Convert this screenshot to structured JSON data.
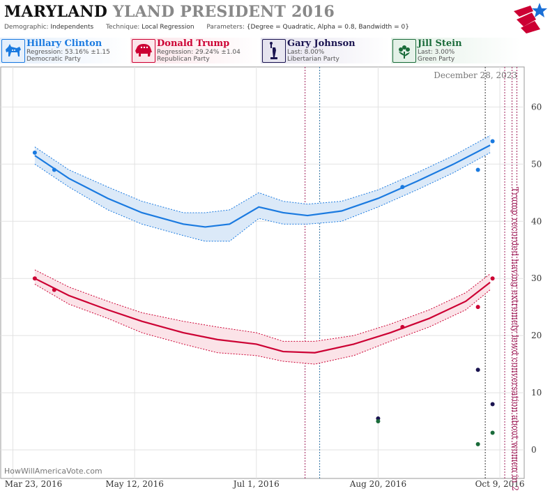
{
  "header": {
    "title_main": "MARYLAND",
    "title_second": "YLAND PRESIDENT 2016",
    "demographic_label": "Demographic:",
    "demographic_value": "Independents",
    "technique_label": "Technique:",
    "technique_value": "Local Regression",
    "parameters_label": "Parameters:",
    "parameters_value": "{Degree = Quadratic, Alpha = 0.8, Bandwidth = 0}"
  },
  "candidates": [
    {
      "name": "Hillary Clinton",
      "stat": "Regression: 53.16% ±1.15",
      "party": "Democratic Party",
      "color": "#1a7ae0",
      "icon": "donkey-icon"
    },
    {
      "name": "Donald Trump",
      "stat": "Regression: 29.24% ±1.04",
      "party": "Republican Party",
      "color": "#cc0033",
      "icon": "elephant-icon"
    },
    {
      "name": "Gary Johnson",
      "stat": "Last: 8.00%",
      "party": "Libertarian Party",
      "color": "#1a1450",
      "icon": "statue-of-liberty-icon"
    },
    {
      "name": "Jill Stein",
      "stat": "Last: 3.00%",
      "party": "Green Party",
      "color": "#1a6b3a",
      "icon": "flower-icon"
    }
  ],
  "chart_data": {
    "type": "line",
    "date_label": "December 28, 2023",
    "watermark": "HowWillAmericaVote.com",
    "annotation": "Trump recorded having extremely lewd conversation about women in 2005",
    "x_range": [
      "2016-03-18",
      "2016-10-19"
    ],
    "ylim": [
      -5,
      67
    ],
    "y_ticks": [
      0,
      10,
      20,
      30,
      40,
      50,
      60
    ],
    "x_ticks": [
      {
        "date": "2016-03-23",
        "label": "Mar 23, 2016"
      },
      {
        "date": "2016-05-12",
        "label": "May 12, 2016"
      },
      {
        "date": "2016-07-01",
        "label": "Jul 1, 2016"
      },
      {
        "date": "2016-08-20",
        "label": "Aug 20, 2016"
      },
      {
        "date": "2016-10-09",
        "label": "Oct 9, 2016"
      }
    ],
    "grid": true,
    "event_lines": [
      {
        "date": "2016-07-21",
        "color": "#a0205a"
      },
      {
        "date": "2016-07-27",
        "color": "#2b6fa0"
      },
      {
        "date": "2016-10-03",
        "color": "#333333"
      },
      {
        "date": "2016-10-11",
        "color": "#a0205a"
      },
      {
        "date": "2016-10-14",
        "color": "#a0205a"
      },
      {
        "date": "2016-10-16",
        "color": "#a0205a"
      }
    ],
    "series": [
      {
        "color": "#1a7ae0",
        "band_color": "#dbe9f8",
        "fit": [
          {
            "x": "2016-04-01",
            "y": 51.5,
            "lo": 50.0,
            "hi": 53.0
          },
          {
            "x": "2016-04-15",
            "y": 47.5,
            "lo": 46.0,
            "hi": 49.0
          },
          {
            "x": "2016-05-01",
            "y": 44.0,
            "lo": 42.0,
            "hi": 46.0
          },
          {
            "x": "2016-05-15",
            "y": 41.5,
            "lo": 39.5,
            "hi": 43.5
          },
          {
            "x": "2016-06-01",
            "y": 39.5,
            "lo": 37.5,
            "hi": 41.5
          },
          {
            "x": "2016-06-10",
            "y": 39.0,
            "lo": 36.5,
            "hi": 41.5
          },
          {
            "x": "2016-06-20",
            "y": 39.5,
            "lo": 36.5,
            "hi": 42.0
          },
          {
            "x": "2016-06-26",
            "y": 41.0,
            "lo": 38.5,
            "hi": 43.5
          },
          {
            "x": "2016-07-02",
            "y": 42.5,
            "lo": 40.5,
            "hi": 45.0
          },
          {
            "x": "2016-07-12",
            "y": 41.5,
            "lo": 39.5,
            "hi": 43.5
          },
          {
            "x": "2016-07-22",
            "y": 41.0,
            "lo": 39.5,
            "hi": 43.0
          },
          {
            "x": "2016-08-05",
            "y": 41.8,
            "lo": 40.0,
            "hi": 43.5
          },
          {
            "x": "2016-08-20",
            "y": 44.0,
            "lo": 42.5,
            "hi": 45.5
          },
          {
            "x": "2016-09-05",
            "y": 47.0,
            "lo": 45.5,
            "hi": 48.5
          },
          {
            "x": "2016-09-20",
            "y": 50.0,
            "lo": 48.5,
            "hi": 51.5
          },
          {
            "x": "2016-10-05",
            "y": 53.3,
            "lo": 52.0,
            "hi": 55.0
          }
        ],
        "points": [
          {
            "x": "2016-04-01",
            "y": 52
          },
          {
            "x": "2016-04-09",
            "y": 49
          },
          {
            "x": "2016-08-30",
            "y": 46
          },
          {
            "x": "2016-09-30",
            "y": 49
          },
          {
            "x": "2016-10-06",
            "y": 54
          }
        ]
      },
      {
        "color": "#cc0033",
        "band_color": "#fbe3e8",
        "fit": [
          {
            "x": "2016-04-01",
            "y": 30.0,
            "lo": 29.0,
            "hi": 31.5
          },
          {
            "x": "2016-04-15",
            "y": 27.0,
            "lo": 25.5,
            "hi": 28.5
          },
          {
            "x": "2016-05-01",
            "y": 24.5,
            "lo": 23.0,
            "hi": 26.0
          },
          {
            "x": "2016-05-15",
            "y": 22.5,
            "lo": 20.5,
            "hi": 24.0
          },
          {
            "x": "2016-06-01",
            "y": 20.5,
            "lo": 18.5,
            "hi": 22.5
          },
          {
            "x": "2016-06-15",
            "y": 19.3,
            "lo": 17.0,
            "hi": 21.5
          },
          {
            "x": "2016-07-01",
            "y": 18.5,
            "lo": 16.5,
            "hi": 20.5
          },
          {
            "x": "2016-07-12",
            "y": 17.2,
            "lo": 15.5,
            "hi": 19.0
          },
          {
            "x": "2016-07-25",
            "y": 17.0,
            "lo": 15.0,
            "hi": 19.0
          },
          {
            "x": "2016-08-10",
            "y": 18.5,
            "lo": 16.5,
            "hi": 20.0
          },
          {
            "x": "2016-08-25",
            "y": 20.5,
            "lo": 19.0,
            "hi": 22.0
          },
          {
            "x": "2016-09-10",
            "y": 23.0,
            "lo": 21.5,
            "hi": 24.5
          },
          {
            "x": "2016-09-25",
            "y": 26.0,
            "lo": 24.5,
            "hi": 27.5
          },
          {
            "x": "2016-10-05",
            "y": 29.3,
            "lo": 28.0,
            "hi": 30.8
          }
        ],
        "points": [
          {
            "x": "2016-04-01",
            "y": 30
          },
          {
            "x": "2016-04-09",
            "y": 28
          },
          {
            "x": "2016-08-30",
            "y": 21.5
          },
          {
            "x": "2016-09-30",
            "y": 25
          },
          {
            "x": "2016-10-06",
            "y": 30
          }
        ]
      },
      {
        "color": "#1a1450",
        "points": [
          {
            "x": "2016-08-20",
            "y": 5.5
          },
          {
            "x": "2016-09-30",
            "y": 14
          },
          {
            "x": "2016-10-06",
            "y": 8
          }
        ]
      },
      {
        "color": "#1a6b3a",
        "points": [
          {
            "x": "2016-08-20",
            "y": 5
          },
          {
            "x": "2016-09-30",
            "y": 1
          },
          {
            "x": "2016-10-06",
            "y": 3
          }
        ]
      }
    ]
  }
}
